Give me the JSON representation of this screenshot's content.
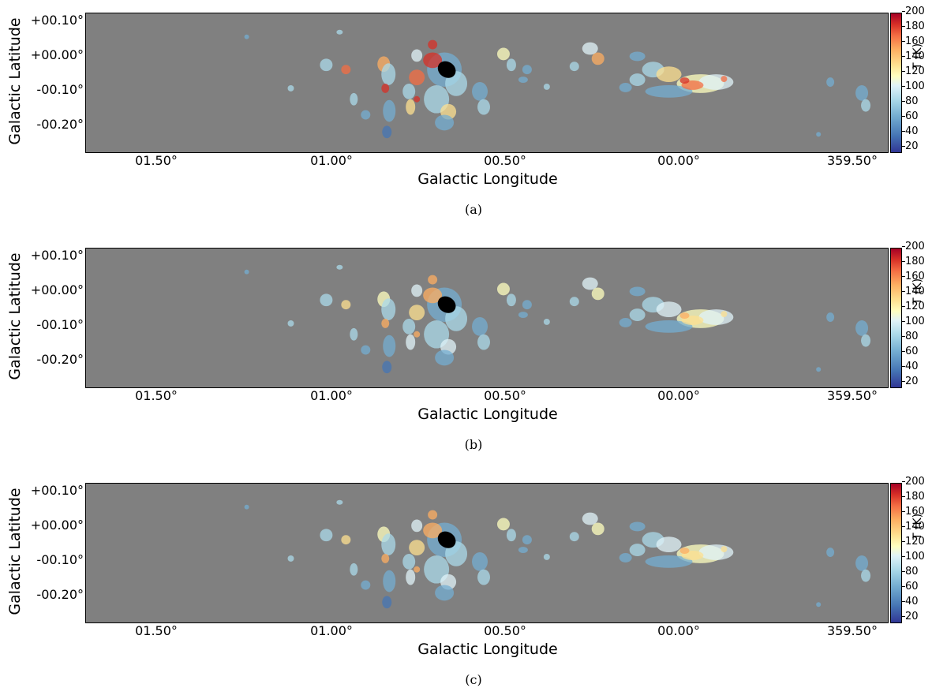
{
  "panels": [
    {
      "caption": "(a)"
    },
    {
      "caption": "(b)"
    },
    {
      "caption": "(c)"
    }
  ],
  "axes": {
    "ylabel": "Galactic Latitude",
    "xlabel": "Galactic Longitude",
    "yticks": [
      "+00.10°",
      "+00.00°",
      "-00.10°",
      "-00.20°"
    ],
    "xticks": [
      "01.50°",
      "01.00°",
      "00.50°",
      "00.00°",
      "359.50°"
    ]
  },
  "colorbar": {
    "label": "T (K)",
    "ticks": [
      "200",
      "180",
      "160",
      "140",
      "120",
      "100",
      "80",
      "60",
      "40",
      "20"
    ],
    "range": [
      10,
      200
    ],
    "colors": [
      "#313695",
      "#4575b4",
      "#74add1",
      "#abd9e9",
      "#e0f3f8",
      "#ffffbf",
      "#fee090",
      "#fdae61",
      "#f46d43",
      "#d73027",
      "#a50026"
    ]
  },
  "map_colors": {
    "background": "#808080",
    "masked_core": "#000000"
  }
}
